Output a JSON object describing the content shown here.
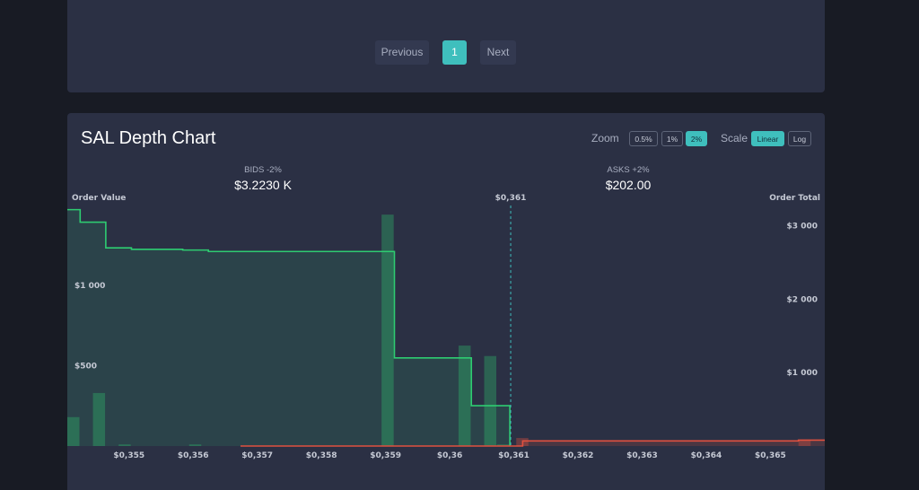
{
  "pagination": {
    "previous_label": "Previous",
    "current_page": "1",
    "next_label": "Next"
  },
  "chart_header": {
    "title": "SAL Depth Chart",
    "zoom_label": "Zoom",
    "zoom_options": [
      "0.5%",
      "1%",
      "2%"
    ],
    "zoom_selected": "2%",
    "scale_label": "Scale",
    "scale_options": [
      "Linear",
      "Log"
    ],
    "scale_selected": "Linear"
  },
  "summary": {
    "bids_label": "BIDS -2%",
    "bids_value": "$3.2230 K",
    "asks_label": "ASKS +2%",
    "asks_value": "$202.00"
  },
  "colors": {
    "bid": "#2ecc71",
    "ask": "#e0513f",
    "mid": "#3fbfbd",
    "panel": "#2b3044",
    "background": "#181b24"
  },
  "chart_data": {
    "type": "depth",
    "mid_price": 0.361,
    "mid_label": "$0,361",
    "left_axis_label": "Order Value",
    "right_axis_label": "Order Total",
    "x_range": [
      0.35408,
      0.36589
    ],
    "left_ylim": [
      0,
      1480
    ],
    "right_ylim": [
      0,
      3240
    ],
    "x_ticks": [
      {
        "value": 0.355,
        "label": "$0,355"
      },
      {
        "value": 0.356,
        "label": "$0,356"
      },
      {
        "value": 0.357,
        "label": "$0,357"
      },
      {
        "value": 0.358,
        "label": "$0,358"
      },
      {
        "value": 0.359,
        "label": "$0,359"
      },
      {
        "value": 0.36,
        "label": "$0,36"
      },
      {
        "value": 0.361,
        "label": "$0,361"
      },
      {
        "value": 0.362,
        "label": "$0,362"
      },
      {
        "value": 0.363,
        "label": "$0,363"
      },
      {
        "value": 0.364,
        "label": "$0,364"
      },
      {
        "value": 0.365,
        "label": "$0,365"
      }
    ],
    "left_ticks": [
      {
        "value": 500,
        "label": "$500"
      },
      {
        "value": 1000,
        "label": "$1 000"
      }
    ],
    "right_ticks": [
      {
        "value": 1000,
        "label": "$1 000"
      },
      {
        "value": 2000,
        "label": "$2 000"
      },
      {
        "value": 3000,
        "label": "$3 000"
      }
    ],
    "bid_depth": [
      {
        "price": 0.35408,
        "total": 3220
      },
      {
        "price": 0.35428,
        "total": 3050
      },
      {
        "price": 0.35468,
        "total": 2700
      },
      {
        "price": 0.35508,
        "total": 2680
      },
      {
        "price": 0.35588,
        "total": 2670
      },
      {
        "price": 0.35628,
        "total": 2650
      },
      {
        "price": 0.35918,
        "total": 1200
      },
      {
        "price": 0.36038,
        "total": 550
      },
      {
        "price": 0.36098,
        "total": 0
      }
    ],
    "ask_depth": [
      {
        "price": 0.35678,
        "total": 0
      },
      {
        "price": 0.36118,
        "total": 70
      },
      {
        "price": 0.36548,
        "total": 80
      },
      {
        "price": 0.36589,
        "total": 80
      }
    ],
    "bid_orders": [
      {
        "price": 0.35408,
        "value": 180
      },
      {
        "price": 0.35448,
        "value": 330
      },
      {
        "price": 0.35488,
        "value": 10
      },
      {
        "price": 0.35598,
        "value": 10
      },
      {
        "price": 0.35898,
        "value": 1440
      },
      {
        "price": 0.36018,
        "value": 625
      },
      {
        "price": 0.36058,
        "value": 560
      },
      {
        "price": 0.36078,
        "value": 10
      }
    ],
    "ask_orders": [
      {
        "price": 0.36108,
        "value": 50
      },
      {
        "price": 0.36548,
        "value": 40
      }
    ]
  }
}
